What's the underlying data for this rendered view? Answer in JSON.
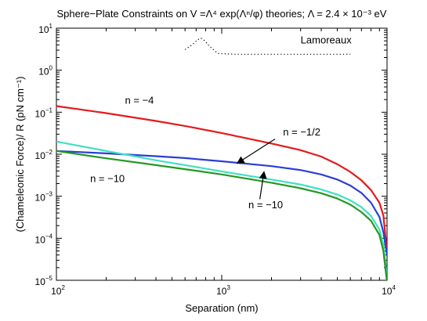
{
  "chart_data": {
    "type": "line",
    "title": "Sphere−Plate Constraints on V =Λ⁴ exp(Λⁿ/φ) theories; Λ = 2.4 × 10⁻³ eV",
    "xlabel": "Separation (nm)",
    "ylabel": "(Chameleonic  Force)/ R (pN cm⁻¹)",
    "x_scale": "log",
    "y_scale": "log",
    "xlim": [
      100,
      10000
    ],
    "ylim": [
      1e-05,
      10
    ],
    "x_ticks": [
      {
        "base": "10",
        "exp": "2",
        "value": 100
      },
      {
        "base": "10",
        "exp": "3",
        "value": 1000
      },
      {
        "base": "10",
        "exp": "4",
        "value": 10000
      }
    ],
    "y_ticks": [
      {
        "base": "10",
        "exp": "−5",
        "value": 1e-05
      },
      {
        "base": "10",
        "exp": "−4",
        "value": 0.0001
      },
      {
        "base": "10",
        "exp": "−3",
        "value": 0.001
      },
      {
        "base": "10",
        "exp": "−2",
        "value": 0.01
      },
      {
        "base": "10",
        "exp": "−1",
        "value": 0.1
      },
      {
        "base": "10",
        "exp": "0",
        "value": 1
      },
      {
        "base": "10",
        "exp": "1",
        "value": 10
      }
    ],
    "grid": false,
    "series": [
      {
        "color": "#e31a1c",
        "style": "solid",
        "x": [
          100,
          200,
          400,
          600,
          1000,
          2000,
          3000,
          4000,
          5000,
          6000,
          7000,
          8000,
          9000,
          9500,
          10000
        ],
        "y": [
          0.14,
          0.095,
          0.062,
          0.047,
          0.032,
          0.018,
          0.0125,
          0.0088,
          0.0058,
          0.0038,
          0.0024,
          0.0014,
          0.0007,
          0.00035,
          4.5e-05
        ]
      },
      {
        "color": "#2a3fd6",
        "style": "solid",
        "x": [
          100,
          200,
          400,
          600,
          1000,
          2000,
          3000,
          4000,
          5000,
          6000,
          7000,
          8000,
          9000,
          9500,
          10000
        ],
        "y": [
          0.012,
          0.0105,
          0.009,
          0.0081,
          0.0068,
          0.0052,
          0.0042,
          0.0033,
          0.0025,
          0.0018,
          0.0012,
          0.0007,
          0.00032,
          0.00014,
          4e-05
        ]
      },
      {
        "color": "#40e0c0",
        "style": "solid",
        "x": [
          100,
          200,
          400,
          600,
          1000,
          2000,
          3000,
          4000,
          5000,
          6000,
          7000,
          8000,
          9000,
          9500,
          10000
        ],
        "y": [
          0.02,
          0.012,
          0.0072,
          0.0055,
          0.0039,
          0.0025,
          0.0019,
          0.00145,
          0.0011,
          0.0008,
          0.00055,
          0.00034,
          0.00016,
          7e-05,
          1.2e-05
        ]
      },
      {
        "color": "#229922",
        "style": "solid",
        "x": [
          100,
          200,
          400,
          600,
          1000,
          2000,
          3000,
          4000,
          5000,
          6000,
          7000,
          8000,
          9000,
          9500,
          10000
        ],
        "y": [
          0.012,
          0.008,
          0.0055,
          0.0044,
          0.0033,
          0.0021,
          0.00155,
          0.00118,
          0.00088,
          0.00063,
          0.00042,
          0.00026,
          0.00012,
          5e-05,
          9e-06
        ]
      },
      {
        "name": "Lamoreaux",
        "color": "#000000",
        "style": "dotted",
        "x": [
          600,
          660,
          720,
          750,
          780,
          850,
          950,
          1200,
          2000,
          4000,
          6000
        ],
        "y": [
          3.1,
          4.0,
          5.4,
          5.8,
          5.2,
          3.6,
          2.5,
          2.4,
          2.4,
          2.4,
          2.4
        ]
      }
    ],
    "annotations": [
      {
        "text": "n = −4",
        "x": 260,
        "y": 0.16
      },
      {
        "text": "n = −1/2",
        "x": 2350,
        "y": 0.028
      },
      {
        "text": "n = −10",
        "x": 160,
        "y": 0.0022
      },
      {
        "text": "n = −10",
        "x": 1450,
        "y": 0.00052
      },
      {
        "text": "Lamoreaux",
        "x": 3000,
        "y": 4.3
      }
    ],
    "arrows": [
      {
        "from_x": 2100,
        "from_y": 0.023,
        "to_x": 1250,
        "to_y": 0.0062
      },
      {
        "from_x": 1700,
        "from_y": 0.00085,
        "to_x": 1800,
        "to_y": 0.0037
      }
    ]
  }
}
